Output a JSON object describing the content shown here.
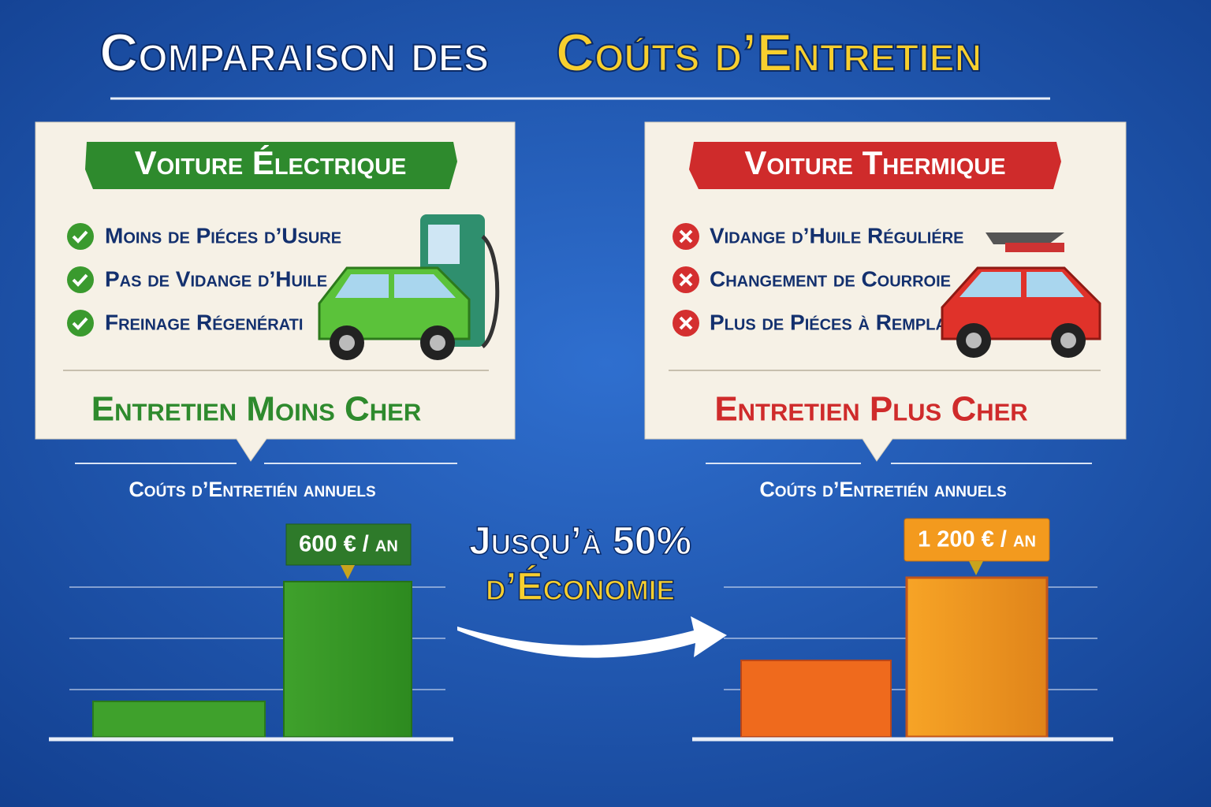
{
  "header": {
    "title_part1": "Comparaison des",
    "title_part2": "Coúts d’Entretien"
  },
  "electric": {
    "heading": "Voiture Électrique",
    "items": [
      "Moins de Piéces d’Usure",
      "Pas de Vidange d’Huile",
      "Freinage Régenérati"
    ],
    "verdict": "Entretien Moins Cher",
    "costs_title": "Coúts d’Entretién annuels",
    "cost_label": "600 € / an"
  },
  "thermal": {
    "heading": "Voiture Thermique",
    "items": [
      "Vidange d’Huile Réguliére",
      "Changement de Courroie",
      "Plus de Piéces à Remplace"
    ],
    "verdict": "Entretien Plus Cher",
    "costs_title": "Coúts d’Entretién annuels",
    "cost_label": "1 200 € / an"
  },
  "savings": {
    "line1": "Jusqu’à 50%",
    "line2": "d’Économie"
  }
}
